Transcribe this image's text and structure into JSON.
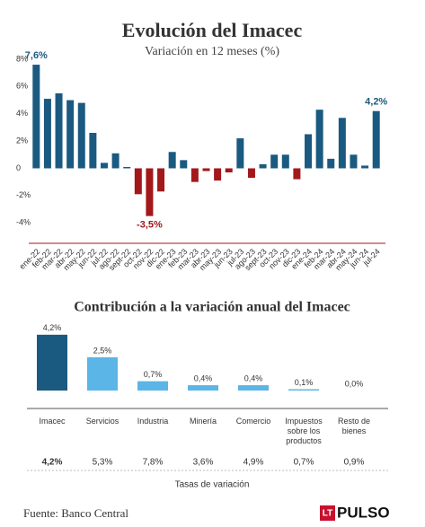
{
  "chart_data": [
    {
      "type": "bar",
      "title": "Evolución del Imacec",
      "subtitle": "Variación en 12 meses (%)",
      "categories": [
        "ene-22",
        "feb-22",
        "mar-22",
        "abr-22",
        "may-22",
        "jun-22",
        "jul-22",
        "ago-22",
        "sept-22",
        "oct-22",
        "nov-22",
        "dic-22",
        "ene-23",
        "feb-23",
        "mar-23",
        "abr-23",
        "may-23",
        "jun-23",
        "jul-23",
        "ago-23",
        "sept-23",
        "oct-23",
        "nov-23",
        "dic-23",
        "ene-24",
        "feb-24",
        "mar-24",
        "abr-24",
        "may-24",
        "jun-24",
        "jul-24"
      ],
      "values": [
        7.6,
        5.1,
        5.5,
        5.0,
        4.8,
        2.6,
        0.4,
        1.1,
        0.1,
        -1.9,
        -3.5,
        -1.7,
        1.2,
        0.6,
        -1.0,
        -0.2,
        -0.9,
        -0.3,
        2.2,
        -0.7,
        0.3,
        1.0,
        1.0,
        -0.8,
        2.5,
        4.3,
        0.7,
        3.7,
        1.0,
        0.2,
        4.2
      ],
      "value_labels": [
        "7,6%",
        null,
        null,
        null,
        null,
        null,
        null,
        null,
        null,
        null,
        "-3,5%",
        null,
        null,
        null,
        null,
        null,
        null,
        null,
        null,
        null,
        null,
        null,
        null,
        null,
        null,
        null,
        null,
        null,
        null,
        null,
        "4,2%"
      ],
      "color": "#1b5a80",
      "negative_color": "#a3181a",
      "ylim": [
        -5.5,
        8
      ],
      "yticks": [
        {
          "value": 8,
          "label": "8%"
        },
        {
          "value": 6,
          "label": "6%"
        },
        {
          "value": 4,
          "label": "4%"
        },
        {
          "value": 2,
          "label": "2%"
        },
        {
          "value": 0,
          "label": "0"
        },
        {
          "value": -2,
          "label": "-2%"
        },
        {
          "value": -4,
          "label": "-4%"
        }
      ]
    },
    {
      "type": "bar",
      "title": "Contribución a la variación anual del Imacec",
      "categories": [
        "Imacec",
        "Servicios",
        "Industria",
        "Minería",
        "Comercio",
        "Impuestos sobre los productos",
        "Resto de bienes"
      ],
      "values": [
        4.2,
        2.5,
        0.7,
        0.4,
        0.4,
        0.1,
        0.0
      ],
      "value_labels": [
        "4,2%",
        "2,5%",
        "0,7%",
        "0,4%",
        "0,4%",
        "0,1%",
        "0,0%"
      ],
      "colors": [
        "#1b5a80",
        "#5bb5e6",
        "#5bb5e6",
        "#5bb5e6",
        "#5bb5e6",
        "#5bb5e6",
        "#5bb5e6"
      ],
      "ylim": [
        0,
        5
      ],
      "rates": {
        "label": "Tasas de variación",
        "values": [
          "4,2%",
          "5,3%",
          "7,8%",
          "3,6%",
          "4,9%",
          "0,7%",
          "0,9%"
        ]
      }
    }
  ],
  "footer": {
    "source": "Fuente: Banco Central",
    "logo_mark": "LT",
    "logo": "PULSO"
  }
}
